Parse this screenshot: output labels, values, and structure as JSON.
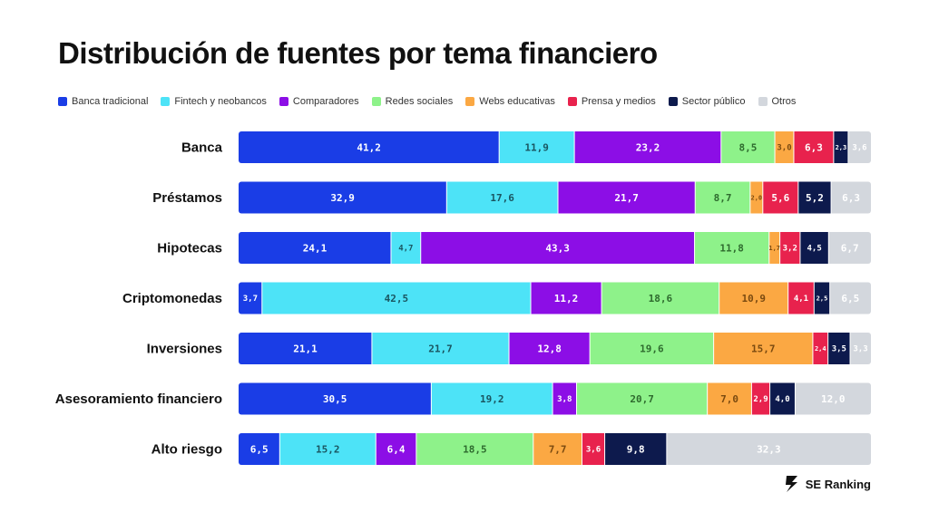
{
  "chart_data": {
    "type": "bar",
    "orientation": "horizontal",
    "stacked": true,
    "title": "Distribución de fuentes por tema financiero",
    "legend_position": "top",
    "xlim": [
      0,
      100
    ],
    "grid": false,
    "categories": [
      "Banca",
      "Préstamos",
      "Hipotecas",
      "Criptomonedas",
      "Inversiones",
      "Asesoramiento financiero",
      "Alto riesgo"
    ],
    "series": [
      {
        "name": "Banca tradicional",
        "color": "#1a3de6",
        "text_color": "#ffffff",
        "values": [
          41.2,
          32.9,
          24.1,
          3.7,
          21.1,
          30.5,
          6.5
        ],
        "labels": [
          "41,2",
          "32,9",
          "24,1",
          "3,7",
          "21,1",
          "30,5",
          "6,5"
        ]
      },
      {
        "name": "Fintech y neobancos",
        "color": "#4de3f7",
        "text_color": "#1a5560",
        "values": [
          11.9,
          17.6,
          4.7,
          42.5,
          21.7,
          19.2,
          15.2
        ],
        "labels": [
          "11,9",
          "17,6",
          "4,7",
          "42,5",
          "21,7",
          "19,2",
          "15,2"
        ]
      },
      {
        "name": "Comparadores",
        "color": "#8c0ee6",
        "text_color": "#ffffff",
        "values": [
          23.2,
          21.7,
          43.3,
          11.2,
          12.8,
          3.8,
          6.4
        ],
        "labels": [
          "23,2",
          "21,7",
          "43,3",
          "11,2",
          "12,8",
          "3,8",
          "6,4"
        ]
      },
      {
        "name": "Redes sociales",
        "color": "#8ef28a",
        "text_color": "#2e6b2e",
        "values": [
          8.5,
          8.7,
          11.8,
          18.6,
          19.6,
          20.7,
          18.5
        ],
        "labels": [
          "8,5",
          "8,7",
          "11,8",
          "18,6",
          "19,6",
          "20,7",
          "18,5"
        ]
      },
      {
        "name": "Webs educativas",
        "color": "#fba843",
        "text_color": "#7a4a10",
        "values": [
          3.0,
          2.0,
          1.7,
          10.9,
          15.7,
          7.0,
          7.7
        ],
        "labels": [
          "3,0",
          "2,0",
          "1,7",
          "10,9",
          "15,7",
          "7,0",
          "7,7"
        ]
      },
      {
        "name": "Prensa y medios",
        "color": "#e8224d",
        "text_color": "#ffffff",
        "values": [
          6.3,
          5.6,
          3.2,
          4.1,
          2.4,
          2.9,
          3.6
        ],
        "labels": [
          "6,3",
          "5,6",
          "3,2",
          "4,1",
          "2,4",
          "2,9",
          "3,6"
        ]
      },
      {
        "name": "Sector público",
        "color": "#0d1a4d",
        "text_color": "#ffffff",
        "values": [
          2.3,
          5.2,
          4.5,
          2.5,
          3.5,
          4.0,
          9.8
        ],
        "labels": [
          "2,3",
          "5,2",
          "4,5",
          "2,5",
          "3,5",
          "4,0",
          "9,8"
        ]
      },
      {
        "name": "Otros",
        "color": "#d3d7dd",
        "text_color": "#ffffff",
        "values": [
          3.6,
          6.3,
          6.7,
          6.5,
          3.3,
          12.0,
          32.3
        ],
        "labels": [
          "3,6",
          "6,3",
          "6,7",
          "6,5",
          "3,3",
          "12,0",
          "32,3"
        ]
      }
    ]
  },
  "brand": {
    "name": "SE Ranking",
    "icon": "se-ranking-logo-icon"
  }
}
